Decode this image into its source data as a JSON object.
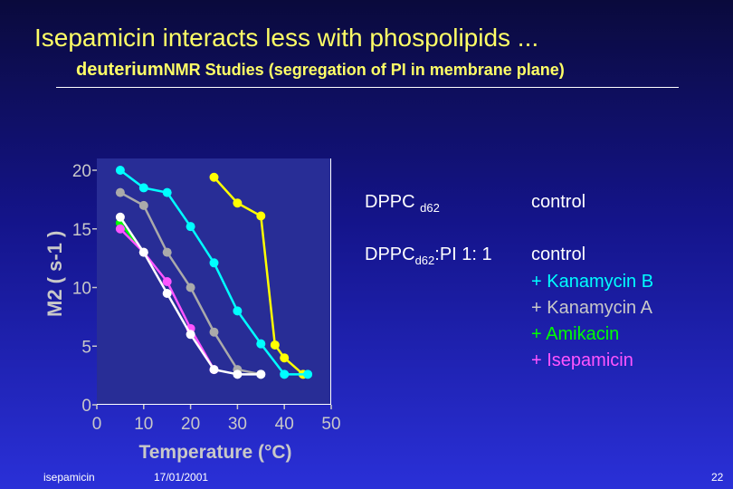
{
  "slide": {
    "title": "Isepamicin interacts less with phospolipids ...",
    "subtitle_a": "deuterium",
    "subtitle_b": "NMR Studies (segregation of PI in membrane plane)"
  },
  "legend": {
    "dppc_base": "DPPC",
    "dppc_sub": "d62",
    "dppc_control": "control",
    "mix_base": "DPPC",
    "mix_sub": "d62",
    "mix_rest": ":PI  1: 1",
    "mix_control": "control",
    "items": [
      {
        "text": "+ Kanamycin B",
        "color": "#00ffff"
      },
      {
        "text": "+ Kanamycin A",
        "color": "#c8c8c8"
      },
      {
        "text": "+ Amikacin",
        "color": "#00ff00"
      },
      {
        "text": "+ Isepamicin",
        "color": "#ff55ff"
      }
    ]
  },
  "chart_data": {
    "type": "line",
    "xlabel": "Temperature (°C)",
    "ylabel": "M2 ( s-1 )",
    "xlim": [
      0,
      50
    ],
    "ylim": [
      0,
      20
    ],
    "x_ticks": [
      "0",
      "10",
      "20",
      "30",
      "40",
      "50"
    ],
    "y_ticks": [
      "0",
      "5",
      "10",
      "15",
      "20"
    ],
    "series": [
      {
        "color": "#ffff00",
        "x": [
          25,
          30,
          35,
          38,
          40,
          44
        ],
        "y": [
          19.4,
          17.2,
          16.1,
          5.1,
          4.0,
          2.6
        ]
      },
      {
        "color": "#00ffff",
        "x": [
          5,
          10,
          15,
          20,
          25,
          30,
          35,
          40,
          45
        ],
        "y": [
          20.0,
          18.5,
          18.1,
          15.2,
          12.1,
          8.0,
          5.2,
          2.6,
          2.6
        ]
      },
      {
        "color": "#aaaaaa",
        "x": [
          5,
          10,
          15,
          20,
          25,
          30,
          35
        ],
        "y": [
          18.1,
          17.0,
          13.0,
          10.0,
          6.2,
          3.0,
          2.6
        ]
      },
      {
        "color": "#00ff00",
        "x": [
          5,
          10
        ],
        "y": [
          15.5,
          13.0
        ]
      },
      {
        "color": "#ff55ff",
        "x": [
          5,
          10,
          15,
          20,
          25
        ],
        "y": [
          15.0,
          13.0,
          10.5,
          6.5,
          3.0
        ]
      },
      {
        "color": "#ffffff",
        "x": [
          5,
          10,
          15,
          20,
          25,
          30,
          35
        ],
        "y": [
          16.0,
          13.0,
          9.5,
          6.0,
          3.0,
          2.6,
          2.6
        ]
      }
    ]
  },
  "footer": {
    "left": "isepamicin",
    "date": "17/01/2001",
    "page": "22"
  }
}
